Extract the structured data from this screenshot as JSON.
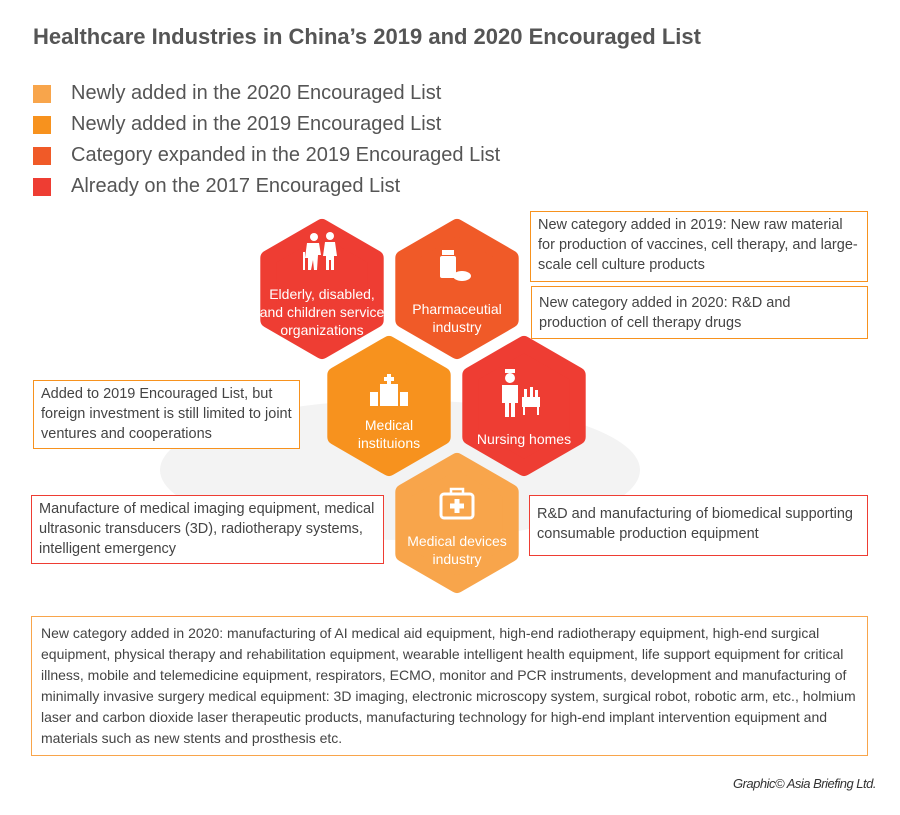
{
  "title": "Healthcare Industries in China’s 2019 and 2020 Encouraged List",
  "legend": [
    {
      "label": "Newly added in the 2020 Encouraged List",
      "color": "#F8A54B"
    },
    {
      "label": "Newly added in the 2019 Encouraged List",
      "color": "#F7921E"
    },
    {
      "label": "Category expanded in the 2019 Encouraged List",
      "color": "#F05A28"
    },
    {
      "label": "Already on the 2017 Encouraged List",
      "color": "#EE3D33"
    }
  ],
  "hexagons": [
    {
      "label": "Elderly, disabled, and children service organizations",
      "icon": "elderly-care-icon",
      "color": "#EE3D33"
    },
    {
      "label": "Pharmaceutial industry",
      "icon": "medicine-bottle-icon",
      "color": "#F05A28"
    },
    {
      "label": "Medical instituions",
      "icon": "hospital-icon",
      "color": "#F7921E"
    },
    {
      "label": "Nursing homes",
      "icon": "nurse-icon",
      "color": "#EE3D33"
    },
    {
      "label": "Medical devices industry",
      "icon": "first-aid-kit-icon",
      "color": "#F8A54B"
    }
  ],
  "notes": {
    "pharma_2019": "New category added in 2019: New raw material for production of vaccines, cell therapy, and large-scale cell culture products",
    "pharma_2020": "New category added in 2020: R&D and production of cell therapy drugs",
    "medical_institutions": "Added to 2019 Encouraged List, but foreign investment is still limited to joint ventures and cooperations",
    "devices_2017_left": "Manufacture of medical imaging equipment, medical ultrasonic transducers (3D), radiotherapy systems, intelligent emergency",
    "devices_2017_right": "R&D and manufacturing of biomedical supporting consumable production equipment",
    "devices_2020": "New category added in 2020: manufacturing of AI medical aid equipment, high-end radiotherapy equipment, high-end surgical equipment, physical therapy and rehabilitation equipment, wearable intelligent health equipment, life support equipment for critical illness, mobile and telemedicine equipment, respirators, ECMO, monitor and PCR instruments, development and manufacturing of minimally invasive surgery medical equipment: 3D imaging, electronic microscopy system, surgical robot, robotic arm, etc., holmium laser and carbon dioxide laser therapeutic products, manufacturing technology for high-end implant intervention equipment and materials such as new stents and prosthesis etc."
  },
  "credit": "Graphic© Asia Briefing Ltd."
}
